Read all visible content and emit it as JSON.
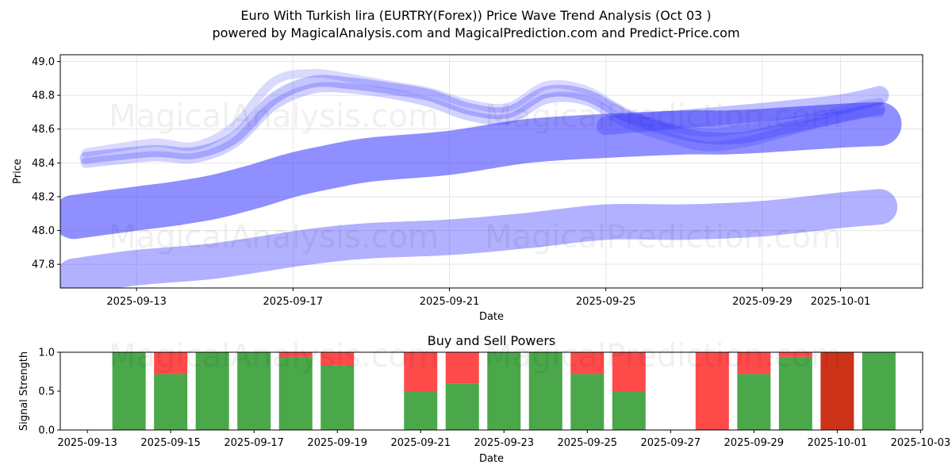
{
  "header": {
    "title_line1": "Euro With Turkish lira (EURTRY(Forex)) Price Wave Trend Analysis (Oct 03 )",
    "title_line2": "powered by MagicalAnalysis.com and MagicalPrediction.com and Predict-Price.com"
  },
  "watermarks": [
    "MagicalAnalysis.com",
    "MagicalPrediction.com"
  ],
  "chart_data": [
    {
      "type": "line",
      "title": "",
      "xlabel": "Date",
      "ylabel": "Price",
      "ylim": [
        47.66,
        49.04
      ],
      "xlim_days": [
        -1.95,
        20.1
      ],
      "x_ref_date": "2025-09-13",
      "x_ticks": [
        {
          "day": 0,
          "label": "2025-09-13"
        },
        {
          "day": 4,
          "label": "2025-09-17"
        },
        {
          "day": 8,
          "label": "2025-09-21"
        },
        {
          "day": 12,
          "label": "2025-09-25"
        },
        {
          "day": 16,
          "label": "2025-09-29"
        },
        {
          "day": 18,
          "label": "2025-10-01"
        }
      ],
      "y_ticks": [
        47.8,
        48.0,
        48.2,
        48.4,
        48.6,
        48.8,
        49.0
      ],
      "grid": true,
      "band_color": "#3333ff",
      "bands": [
        {
          "name": "long-term low",
          "width": 0.21,
          "alpha": 0.38,
          "x": [
            -1.6,
            0,
            2,
            4,
            5,
            6,
            8,
            10,
            12,
            14,
            16,
            18,
            19.0
          ],
          "y": [
            47.73,
            47.78,
            47.82,
            47.89,
            47.92,
            47.94,
            47.96,
            48.0,
            48.05,
            48.05,
            48.07,
            48.12,
            48.14
          ]
        },
        {
          "name": "mid-term trend",
          "width": 0.26,
          "alpha": 0.55,
          "x": [
            -1.6,
            0,
            1,
            2,
            3,
            4,
            5,
            6,
            8,
            10,
            12,
            14,
            15,
            16,
            18,
            19.0
          ],
          "y": [
            48.08,
            48.13,
            48.16,
            48.2,
            48.26,
            48.33,
            48.38,
            48.42,
            48.46,
            48.53,
            48.56,
            48.58,
            48.58,
            48.59,
            48.62,
            48.63
          ]
        },
        {
          "name": "short wave a",
          "width": 0.07,
          "alpha": 0.28,
          "x": [
            -1.3,
            -0.5,
            0.5,
            1.5,
            2.5,
            3.5,
            4.5,
            5.5,
            6.5,
            7.5,
            8.5,
            9.5,
            10.5,
            11.5,
            12.5,
            13.5,
            14.5,
            15.5,
            16.5,
            17.5,
            18.5,
            19.0
          ],
          "y": [
            48.43,
            48.45,
            48.47,
            48.46,
            48.55,
            48.78,
            48.88,
            48.87,
            48.84,
            48.8,
            48.72,
            48.7,
            48.82,
            48.8,
            48.68,
            48.6,
            48.55,
            48.55,
            48.6,
            48.65,
            48.7,
            48.72
          ]
        },
        {
          "name": "short wave b",
          "width": 0.06,
          "alpha": 0.22,
          "x": [
            -1.3,
            -0.5,
            0.5,
            1.5,
            2.5,
            3.5,
            4.5,
            5.5,
            6.5,
            7.5,
            8.5,
            9.5,
            10.5,
            11.5,
            12.5,
            13.5,
            14.5,
            15.5,
            16.5,
            17.5,
            18.5,
            19.0
          ],
          "y": [
            48.4,
            48.42,
            48.44,
            48.43,
            48.52,
            48.74,
            48.84,
            48.84,
            48.81,
            48.76,
            48.68,
            48.66,
            48.78,
            48.77,
            48.64,
            48.56,
            48.5,
            48.52,
            48.58,
            48.64,
            48.69,
            48.7
          ]
        },
        {
          "name": "short wave c",
          "width": 0.05,
          "alpha": 0.18,
          "x": [
            -1.3,
            -0.5,
            0.5,
            1.5,
            2.5,
            3.5,
            4.5,
            5.5,
            6.5,
            7.5,
            8.5,
            9.5,
            10.5,
            11.5,
            12.5,
            13.5,
            14.5,
            15.5,
            16.5,
            17.5,
            18.5,
            19.0
          ],
          "y": [
            48.46,
            48.49,
            48.52,
            48.5,
            48.62,
            48.88,
            48.93,
            48.9,
            48.86,
            48.82,
            48.75,
            48.73,
            48.86,
            48.83,
            48.7,
            48.62,
            48.58,
            48.6,
            48.64,
            48.68,
            48.74,
            48.76
          ]
        },
        {
          "name": "long upper band",
          "width": 0.11,
          "alpha": 0.3,
          "x": [
            12,
            14,
            16,
            18,
            19.0
          ],
          "y": [
            48.62,
            48.66,
            48.7,
            48.75,
            48.8
          ]
        }
      ]
    },
    {
      "type": "bar",
      "title": "Buy and Sell Powers",
      "xlabel": "Date",
      "ylabel": "Signal Strength",
      "ylim": [
        0,
        1.0
      ],
      "y_ticks": [
        0.0,
        0.5,
        1.0
      ],
      "xlim_days": [
        -0.65,
        20.05
      ],
      "x_ticks": [
        {
          "day": 0,
          "label": "2025-09-13"
        },
        {
          "day": 2,
          "label": "2025-09-15"
        },
        {
          "day": 4,
          "label": "2025-09-17"
        },
        {
          "day": 6,
          "label": "2025-09-19"
        },
        {
          "day": 8,
          "label": "2025-09-21"
        },
        {
          "day": 10,
          "label": "2025-09-23"
        },
        {
          "day": 12,
          "label": "2025-09-25"
        },
        {
          "day": 14,
          "label": "2025-09-27"
        },
        {
          "day": 16,
          "label": "2025-09-29"
        },
        {
          "day": 18,
          "label": "2025-10-01"
        },
        {
          "day": 20,
          "label": "2025-10-03"
        }
      ],
      "buy_color": "#4aa84a",
      "sell_color": "#ff4a4a",
      "sell_strong_color": "#cc3319",
      "bars": [
        {
          "date": "2025-09-14",
          "day": 1,
          "buy": 1.0,
          "sell": 0.0
        },
        {
          "date": "2025-09-15",
          "day": 2,
          "buy": 0.72,
          "sell": 0.28
        },
        {
          "date": "2025-09-16",
          "day": 3,
          "buy": 1.0,
          "sell": 0.0
        },
        {
          "date": "2025-09-17",
          "day": 4,
          "buy": 1.0,
          "sell": 0.0
        },
        {
          "date": "2025-09-18",
          "day": 5,
          "buy": 0.94,
          "sell": 0.06
        },
        {
          "date": "2025-09-19",
          "day": 6,
          "buy": 0.83,
          "sell": 0.17
        },
        {
          "date": "2025-09-21",
          "day": 8,
          "buy": 0.5,
          "sell": 0.5
        },
        {
          "date": "2025-09-22",
          "day": 9,
          "buy": 0.6,
          "sell": 0.4
        },
        {
          "date": "2025-09-23",
          "day": 10,
          "buy": 1.0,
          "sell": 0.0
        },
        {
          "date": "2025-09-24",
          "day": 11,
          "buy": 1.0,
          "sell": 0.0
        },
        {
          "date": "2025-09-25",
          "day": 12,
          "buy": 0.72,
          "sell": 0.28
        },
        {
          "date": "2025-09-26",
          "day": 13,
          "buy": 0.5,
          "sell": 0.5
        },
        {
          "date": "2025-09-28",
          "day": 15,
          "buy": 0.0,
          "sell": 1.0
        },
        {
          "date": "2025-09-29",
          "day": 16,
          "buy": 0.72,
          "sell": 0.28
        },
        {
          "date": "2025-09-30",
          "day": 17,
          "buy": 0.94,
          "sell": 0.06
        },
        {
          "date": "2025-10-01",
          "day": 18,
          "buy": 0.0,
          "sell": 1.0,
          "strong": true
        },
        {
          "date": "2025-10-02",
          "day": 19,
          "buy": 1.0,
          "sell": 0.0
        }
      ]
    }
  ]
}
